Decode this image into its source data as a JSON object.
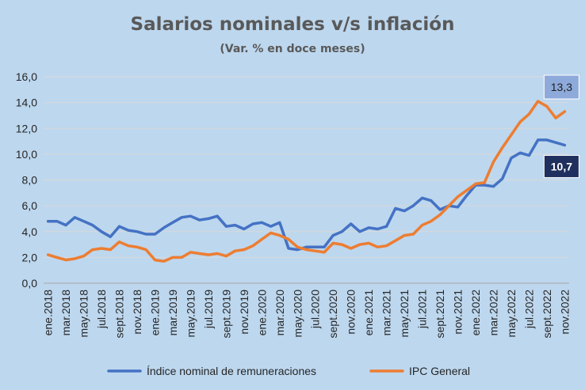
{
  "chart_data": {
    "type": "line",
    "title": "Salarios nominales v/s inflación",
    "subtitle": "(Var. % en doce meses)",
    "ylim": [
      0,
      16
    ],
    "y_ticks": [
      "0,0",
      "2,0",
      "4,0",
      "6,0",
      "8,0",
      "10,0",
      "12,0",
      "14,0",
      "16,0"
    ],
    "grid": true,
    "legend_position": "bottom",
    "x": [
      "ene.2018",
      "feb.2018",
      "mar.2018",
      "abr.2018",
      "may.2018",
      "jun.2018",
      "jul.2018",
      "ago.2018",
      "sept.2018",
      "oct.2018",
      "nov.2018",
      "dic.2018",
      "ene.2019",
      "feb.2019",
      "mar.2019",
      "abr.2019",
      "may.2019",
      "jun.2019",
      "jul.2019",
      "ago.2019",
      "sept.2019",
      "oct.2019",
      "nov.2019",
      "dic.2019",
      "ene.2020",
      "feb.2020",
      "mar.2020",
      "abr.2020",
      "may.2020",
      "jun.2020",
      "jul.2020",
      "ago.2020",
      "sept.2020",
      "oct.2020",
      "nov.2020",
      "dic.2020",
      "ene.2021",
      "feb.2021",
      "mar.2021",
      "abr.2021",
      "may.2021",
      "jun.2021",
      "jul.2021",
      "ago.2021",
      "sept.2021",
      "oct.2021",
      "nov.2021",
      "dic.2021",
      "ene.2022",
      "feb.2022",
      "mar.2022",
      "abr.2022",
      "may.2022",
      "jun.2022",
      "jul.2022",
      "ago.2022",
      "sept.2022",
      "oct.2022",
      "nov.2022"
    ],
    "x_tick_labels": [
      "ene.2018",
      "mar.2018",
      "may.2018",
      "jul.2018",
      "sept.2018",
      "nov.2018",
      "ene.2019",
      "mar.2019",
      "may.2019",
      "jul.2019",
      "sept.2019",
      "nov.2019",
      "ene.2020",
      "mar.2020",
      "may.2020",
      "jul.2020",
      "sept.2020",
      "nov.2020",
      "ene.2021",
      "mar.2021",
      "may.2021",
      "jul.2021",
      "sept.2021",
      "nov.2021",
      "ene.2022",
      "mar.2022",
      "may.2022",
      "jul.2022",
      "sept.2022",
      "nov.2022"
    ],
    "series": [
      {
        "name": "Índice nominal de remuneraciones",
        "color": "#4472c4",
        "values": [
          4.8,
          4.8,
          4.5,
          5.1,
          4.8,
          4.5,
          4.0,
          3.6,
          4.4,
          4.1,
          4.0,
          3.8,
          3.8,
          4.3,
          4.7,
          5.1,
          5.2,
          4.9,
          5.0,
          5.2,
          4.4,
          4.5,
          4.2,
          4.6,
          4.7,
          4.4,
          4.7,
          2.7,
          2.6,
          2.8,
          2.8,
          2.8,
          3.7,
          4.0,
          4.6,
          4.0,
          4.3,
          4.2,
          4.4,
          5.8,
          5.6,
          6.0,
          6.6,
          6.4,
          5.7,
          6.0,
          5.9,
          6.8,
          7.6,
          7.6,
          7.5,
          8.1,
          9.7,
          10.1,
          9.9,
          11.1,
          11.1,
          10.9,
          10.7
        ]
      },
      {
        "name": "IPC General",
        "color": "#ed7d31",
        "values": [
          2.2,
          2.0,
          1.8,
          1.9,
          2.1,
          2.6,
          2.7,
          2.6,
          3.2,
          2.9,
          2.8,
          2.6,
          1.8,
          1.7,
          2.0,
          2.0,
          2.4,
          2.3,
          2.2,
          2.3,
          2.1,
          2.5,
          2.6,
          2.9,
          3.4,
          3.9,
          3.7,
          3.4,
          2.8,
          2.6,
          2.5,
          2.4,
          3.1,
          3.0,
          2.7,
          3.0,
          3.1,
          2.8,
          2.9,
          3.3,
          3.7,
          3.8,
          4.5,
          4.8,
          5.3,
          6.0,
          6.7,
          7.2,
          7.7,
          7.8,
          9.4,
          10.5,
          11.5,
          12.5,
          13.1,
          14.1,
          13.7,
          12.8,
          13.3
        ]
      }
    ],
    "annotations": [
      {
        "text": "13,3",
        "series": 1
      },
      {
        "text": "10,7",
        "series": 0
      }
    ]
  }
}
